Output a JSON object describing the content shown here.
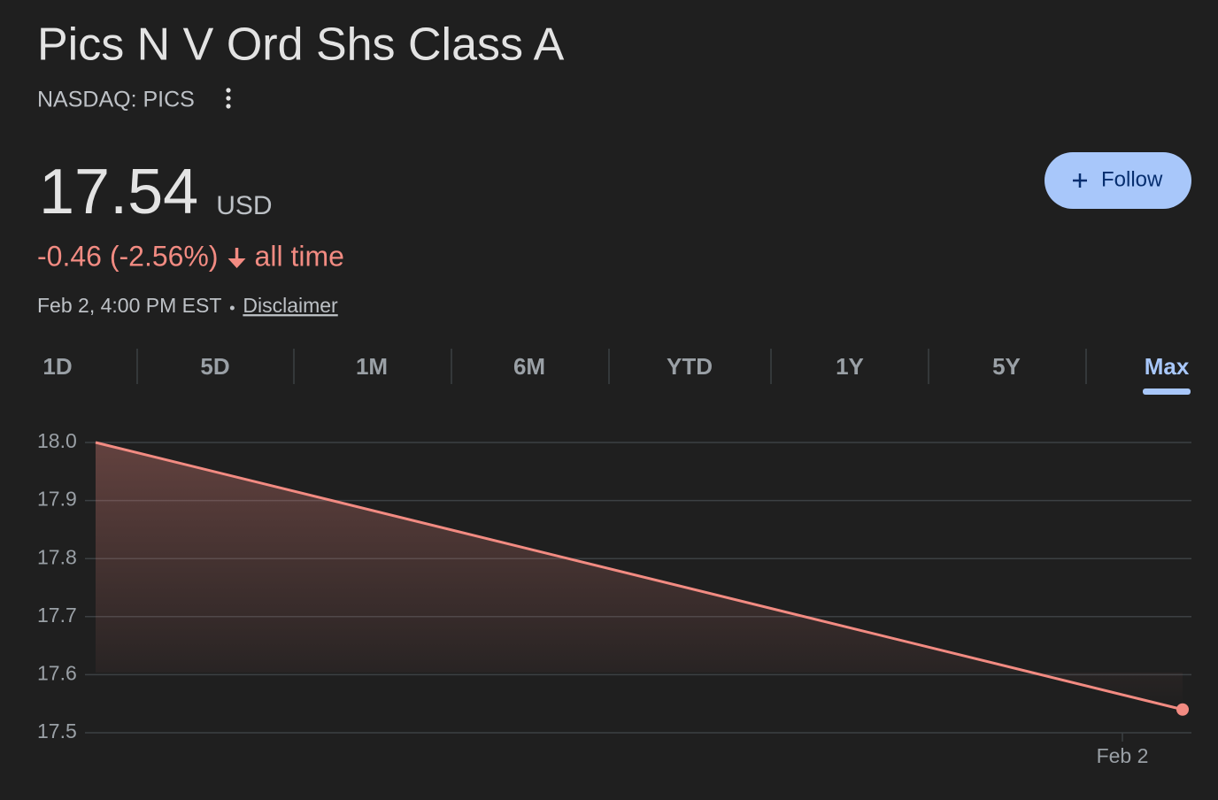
{
  "header": {
    "title": "Pics N V Ord Shs Class A",
    "exchange": "NASDAQ: PICS"
  },
  "quote": {
    "price": "17.54",
    "currency": "USD",
    "change": "-0.46 (-2.56%)",
    "period": "all time",
    "timestamp": "Feb 2, 4:00 PM EST",
    "disclaimer": "Disclaimer"
  },
  "follow_button": "Follow",
  "ranges": [
    "1D",
    "5D",
    "1M",
    "6M",
    "YTD",
    "1Y",
    "5Y",
    "Max"
  ],
  "selected_range": 7,
  "chart_data": {
    "type": "line",
    "x": [
      null,
      "Feb 2"
    ],
    "values": [
      18.0,
      17.54
    ],
    "color": "#f28b82",
    "ylim": [
      17.5,
      18.0
    ],
    "yticks": [
      17.5,
      17.6,
      17.7,
      17.8,
      17.9,
      {
        "value": 18.0,
        "label": "18.0"
      }
    ],
    "grid": true
  }
}
